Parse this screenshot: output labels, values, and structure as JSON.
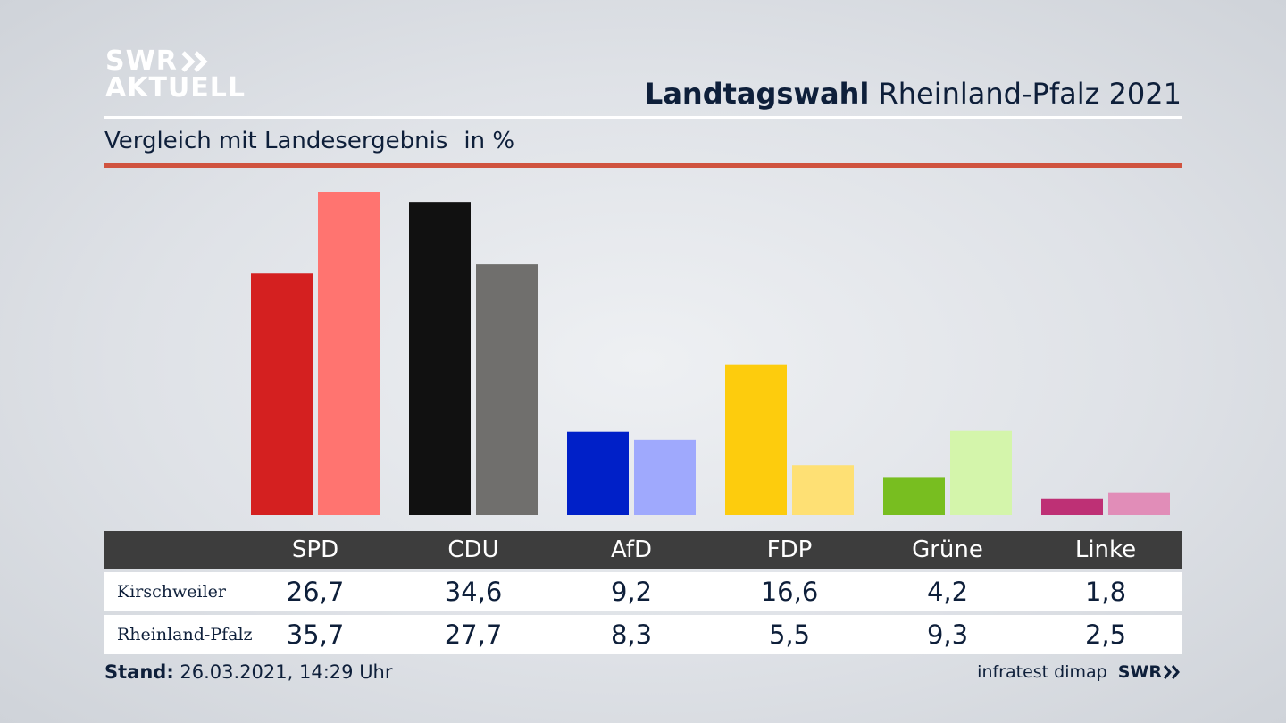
{
  "brand": {
    "line1": "SWR",
    "line2": "AKTUELL"
  },
  "header": {
    "title_bold": "Landtagswahl",
    "title_rest": "Rheinland-Pfalz 2021"
  },
  "subheader": {
    "text": "Vergleich mit Landesergebnis",
    "unit": "in %"
  },
  "chart_data": {
    "type": "bar",
    "categories": [
      "SPD",
      "CDU",
      "AfD",
      "FDP",
      "Grüne",
      "Linke"
    ],
    "series": [
      {
        "name": "Kirschweiler",
        "values": [
          26.7,
          34.6,
          9.2,
          16.6,
          4.2,
          1.8
        ],
        "display": [
          "26,7",
          "34,6",
          "9,2",
          "16,6",
          "4,2",
          "1,8"
        ],
        "colors": [
          "#d42020",
          "#111111",
          "#0020c8",
          "#fdcc0d",
          "#78be20",
          "#be3075"
        ]
      },
      {
        "name": "Rheinland-Pfalz",
        "values": [
          35.7,
          27.7,
          8.3,
          5.5,
          9.3,
          2.5
        ],
        "display": [
          "35,7",
          "27,7",
          "8,3",
          "5,5",
          "9,3",
          "2,5"
        ],
        "colors": [
          "#ff7470",
          "#706f6d",
          "#9fa9fd",
          "#fee074",
          "#d4f5ab",
          "#e18db8"
        ]
      }
    ],
    "ylim": [
      0,
      35.7
    ]
  },
  "footer": {
    "stand_label": "Stand:",
    "stand_value": "26.03.2021, 14:29 Uhr",
    "source": "infratest dimap",
    "brand": "SWR"
  }
}
